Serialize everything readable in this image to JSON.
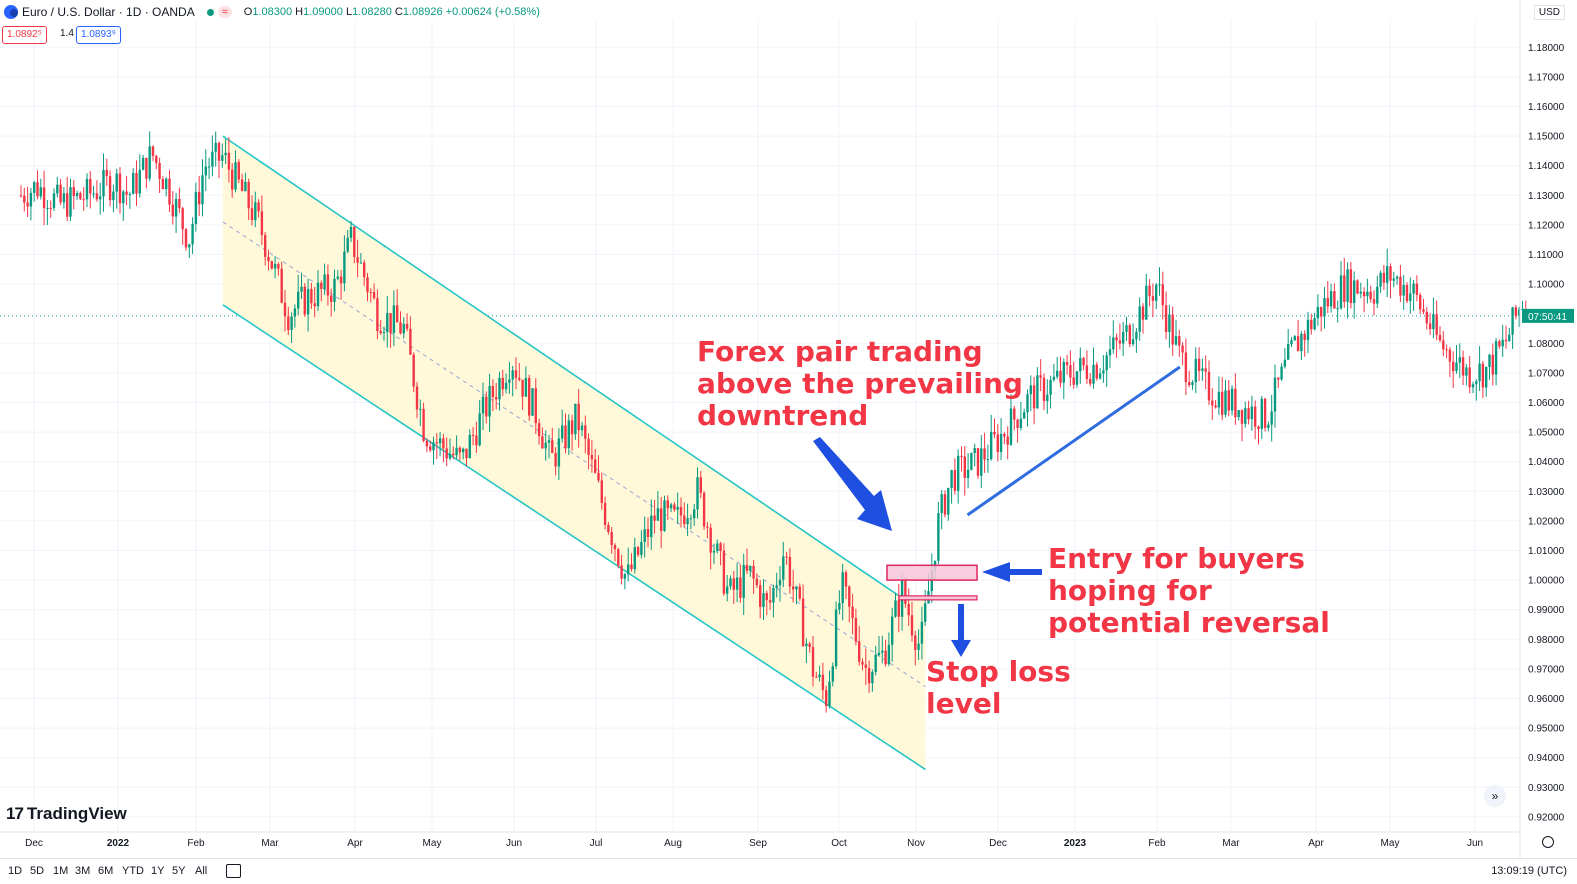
{
  "header": {
    "symbol": "Euro / U.S. Dollar · 1D · OANDA",
    "wave": "≈",
    "open_label": "O",
    "open": "1.08300",
    "high_label": "H",
    "high": "1.09000",
    "low_label": "L",
    "low": "1.08280",
    "close_label": "C",
    "close": "1.08926",
    "change": "+0.00624 (+0.58%)",
    "bid": "1.0892⁵",
    "spread": "1.4",
    "ask": "1.0893⁹",
    "currency": "USD"
  },
  "price_axis": {
    "current_time_badge": "07:50:41",
    "badge_color": "#089981"
  },
  "logo": "TradingView",
  "bottom_bar": {
    "timeframes": [
      "1D",
      "5D",
      "1M",
      "3M",
      "6M",
      "YTD",
      "1Y",
      "5Y",
      "All"
    ],
    "clock": "13:09:19 (UTC)"
  },
  "annotations": {
    "forex": [
      "Forex pair trading",
      "above the prevailing",
      "downtrend"
    ],
    "entry": [
      "Entry for buyers",
      "hoping for",
      "potential reversal"
    ],
    "stop": [
      "Stop loss",
      "level"
    ]
  },
  "colors": {
    "up": "#089981",
    "down": "#f23645",
    "channel": "#26c6c6",
    "channel_fill": "#fff9d9",
    "trendline": "#2e6ce0",
    "arrow": "#1f4fe0",
    "annotation": "#f23645"
  },
  "chart_data": {
    "type": "candlestick",
    "title": "Euro / U.S. Dollar · 1D · OANDA",
    "x_ticks": [
      "Dec",
      "2022",
      "Feb",
      "Mar",
      "Apr",
      "May",
      "Jun",
      "Jul",
      "Aug",
      "Sep",
      "Oct",
      "Nov",
      "Dec",
      "2023",
      "Feb",
      "Mar",
      "Apr",
      "May",
      "Jun"
    ],
    "y_ticks": [
      "1.18000",
      "1.17000",
      "1.16000",
      "1.15000",
      "1.14000",
      "1.13000",
      "1.12000",
      "1.11000",
      "1.10000",
      "1.09000",
      "1.08000",
      "1.07000",
      "1.06000",
      "1.05000",
      "1.04000",
      "1.03000",
      "1.02000",
      "1.01000",
      "1.00000",
      "0.99000",
      "0.98000",
      "0.97000",
      "0.96000",
      "0.95000",
      "0.94000",
      "0.93000",
      "0.92000"
    ],
    "ylim": [
      0.917,
      1.185
    ],
    "last_price": 1.08926,
    "price_path": [
      [
        "2021-11-25",
        1.13
      ],
      [
        "2021-12-01",
        1.133
      ],
      [
        "2021-12-10",
        1.127
      ],
      [
        "2021-12-20",
        1.13
      ],
      [
        "2021-12-31",
        1.135
      ],
      [
        "2022-01-05",
        1.13
      ],
      [
        "2022-01-14",
        1.144
      ],
      [
        "2022-01-20",
        1.133
      ],
      [
        "2022-01-28",
        1.115
      ],
      [
        "2022-02-03",
        1.14
      ],
      [
        "2022-02-10",
        1.143
      ],
      [
        "2022-02-15",
        1.135
      ],
      [
        "2022-02-24",
        1.12
      ],
      [
        "2022-03-07",
        1.09
      ],
      [
        "2022-03-15",
        1.096
      ],
      [
        "2022-03-25",
        1.099
      ],
      [
        "2022-03-31",
        1.115
      ],
      [
        "2022-04-10",
        1.09
      ],
      [
        "2022-04-20",
        1.085
      ],
      [
        "2022-04-28",
        1.05
      ],
      [
        "2022-05-12",
        1.04
      ],
      [
        "2022-05-20",
        1.056
      ],
      [
        "2022-05-31",
        1.075
      ],
      [
        "2022-06-10",
        1.055
      ],
      [
        "2022-06-15",
        1.04
      ],
      [
        "2022-06-25",
        1.055
      ],
      [
        "2022-07-05",
        1.025
      ],
      [
        "2022-07-14",
        1.0
      ],
      [
        "2022-07-25",
        1.022
      ],
      [
        "2022-08-02",
        1.02
      ],
      [
        "2022-08-10",
        1.03
      ],
      [
        "2022-08-22",
        0.995
      ],
      [
        "2022-08-30",
        1.002
      ],
      [
        "2022-09-06",
        0.99
      ],
      [
        "2022-09-12",
        1.01
      ],
      [
        "2022-09-23",
        0.97
      ],
      [
        "2022-09-28",
        0.96
      ],
      [
        "2022-10-04",
        0.998
      ],
      [
        "2022-10-13",
        0.97
      ],
      [
        "2022-10-20",
        0.975
      ],
      [
        "2022-10-27",
        0.996
      ],
      [
        "2022-11-03",
        0.977
      ],
      [
        "2022-11-10",
        1.02
      ],
      [
        "2022-11-15",
        1.035
      ],
      [
        "2022-11-25",
        1.04
      ],
      [
        "2022-12-05",
        1.05
      ],
      [
        "2022-12-15",
        1.062
      ],
      [
        "2022-12-30",
        1.07
      ],
      [
        "2023-01-10",
        1.073
      ],
      [
        "2023-01-20",
        1.082
      ],
      [
        "2023-02-01",
        1.1
      ],
      [
        "2023-02-10",
        1.075
      ],
      [
        "2023-02-20",
        1.065
      ],
      [
        "2023-03-01",
        1.06
      ],
      [
        "2023-03-15",
        1.055
      ],
      [
        "2023-03-25",
        1.078
      ],
      [
        "2023-04-05",
        1.092
      ],
      [
        "2023-04-14",
        1.1
      ],
      [
        "2023-04-25",
        1.098
      ],
      [
        "2023-05-01",
        1.103
      ],
      [
        "2023-05-10",
        1.097
      ],
      [
        "2023-05-20",
        1.08
      ],
      [
        "2023-05-31",
        1.07
      ],
      [
        "2023-06-07",
        1.071
      ],
      [
        "2023-06-14",
        1.08
      ],
      [
        "2023-06-21",
        1.095
      ],
      [
        "2023-06-23",
        1.089
      ]
    ],
    "descending_channel": {
      "upper": [
        [
          "2022-02-10",
          1.15
        ],
        [
          "2022-10-27",
          0.994
        ]
      ],
      "lower": [
        [
          "2022-02-10",
          1.093
        ],
        [
          "2022-11-05",
          0.936
        ]
      ],
      "mid": [
        [
          "2022-02-10",
          1.121
        ],
        [
          "2022-11-05",
          0.964
        ]
      ]
    },
    "entry_zone": [
      1.0,
      1.005
    ],
    "stop_loss_level": 0.994,
    "trendline": [
      [
        "2022-11-21",
        1.022
      ],
      [
        "2023-02-10",
        1.072
      ]
    ]
  }
}
